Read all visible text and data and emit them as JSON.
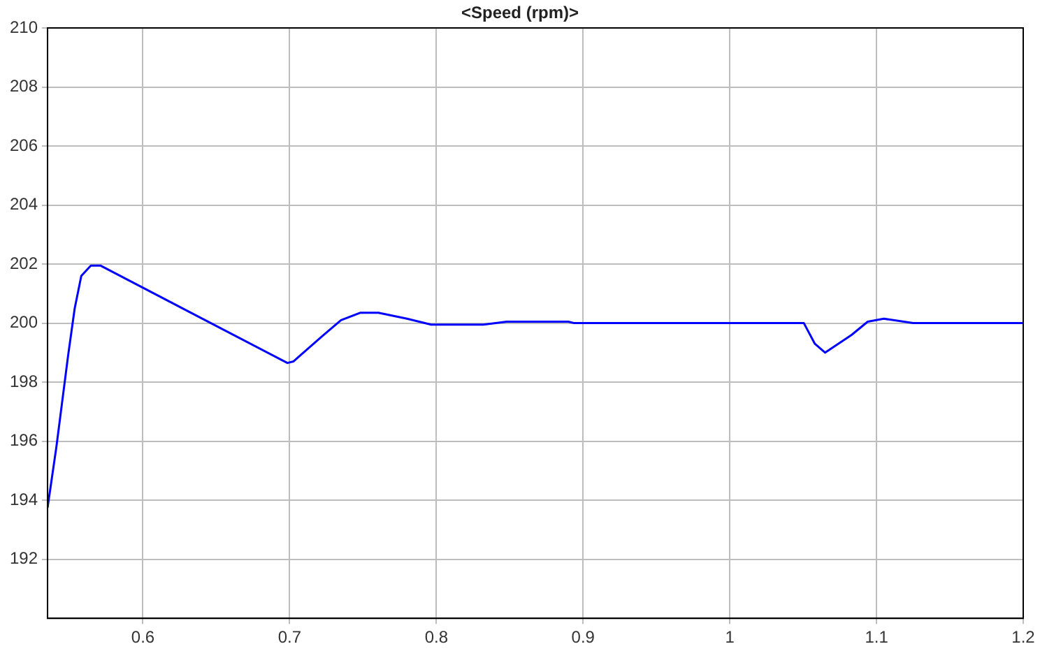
{
  "chart_data": {
    "type": "line",
    "title": "<Speed (rpm)>",
    "x": [
      0.535,
      0.541,
      0.549,
      0.5535,
      0.558,
      0.5645,
      0.571,
      0.6985,
      0.7025,
      0.722,
      0.735,
      0.748,
      0.7605,
      0.78,
      0.7965,
      0.832,
      0.848,
      0.89,
      0.894,
      1.0505,
      1.058,
      1.065,
      1.083,
      1.094,
      1.105,
      1.125,
      1.2
    ],
    "series": [
      {
        "color": "#0000ff",
        "values": [
          193.75,
          195.8,
          198.9,
          200.5,
          201.6,
          201.95,
          201.95,
          198.65,
          198.7,
          199.55,
          200.1,
          200.35,
          200.35,
          200.15,
          199.95,
          199.95,
          200.05,
          200.05,
          200,
          200,
          199.3,
          199,
          199.6,
          200.05,
          200.15,
          200,
          200
        ]
      }
    ],
    "xlim": [
      0.535,
      1.2
    ],
    "xticks": [
      0.6,
      0.7,
      0.8,
      0.9,
      1,
      1.1,
      1.2
    ],
    "ylim": [
      190,
      210
    ],
    "yticks": [
      192,
      194,
      196,
      198,
      200,
      202,
      204,
      206,
      208,
      210
    ],
    "grid": true,
    "legend": false,
    "marker": "none",
    "line_style": "solid"
  }
}
